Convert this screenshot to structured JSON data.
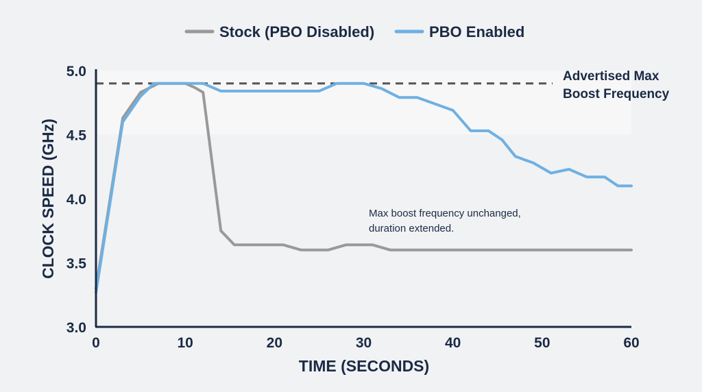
{
  "chart_data": {
    "type": "line",
    "xlabel": "TIME (SECONDS)",
    "ylabel": "CLOCK SPEED (GHz)",
    "xlim": [
      0,
      60
    ],
    "ylim": [
      3.0,
      5.0
    ],
    "xticks": [
      "0",
      "10",
      "20",
      "30",
      "40",
      "50",
      "60"
    ],
    "yticks": [
      "3.0",
      "3.5",
      "4.0",
      "4.5",
      "5.0"
    ],
    "grid": false,
    "legend_position": "top-center",
    "series": [
      {
        "name": "Stock (PBO Disabled)",
        "color": "#999999",
        "x": [
          0,
          3,
          5,
          7,
          10,
          11,
          12,
          14,
          15.5,
          21,
          23,
          26,
          28,
          31,
          33,
          60
        ],
        "y": [
          3.3,
          4.63,
          4.83,
          4.9,
          4.9,
          4.87,
          4.83,
          3.75,
          3.64,
          3.64,
          3.6,
          3.6,
          3.64,
          3.64,
          3.6,
          3.6
        ]
      },
      {
        "name": "PBO Enabled",
        "color": "#6fb0e2",
        "x": [
          0,
          3,
          5,
          6.5,
          12,
          14,
          25,
          27,
          30,
          32,
          34,
          36,
          38,
          40,
          42,
          44,
          45.5,
          47,
          49,
          51,
          53,
          55,
          57,
          58.5,
          60
        ],
        "y": [
          3.27,
          4.6,
          4.8,
          4.9,
          4.9,
          4.84,
          4.84,
          4.9,
          4.9,
          4.86,
          4.79,
          4.79,
          4.74,
          4.69,
          4.53,
          4.53,
          4.46,
          4.33,
          4.28,
          4.2,
          4.23,
          4.17,
          4.17,
          4.1,
          4.1
        ]
      }
    ],
    "reference_line": {
      "y": 4.9,
      "label_line1": "Advertised Max",
      "label_line2": "Boost Frequency",
      "color": "#555555"
    },
    "annotation": {
      "line1": "Max boost frequency unchanged,",
      "line2": "duration extended."
    }
  }
}
